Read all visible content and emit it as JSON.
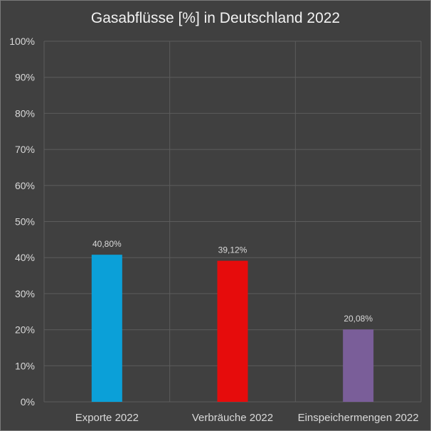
{
  "chart_data": {
    "type": "bar",
    "title": "Gasabflüsse [%] in Deutschland 2022",
    "xlabel": "",
    "ylabel": "",
    "categories": [
      "Exporte 2022",
      "Verbräuche 2022",
      "Einspeichermengen 2022"
    ],
    "values": [
      40.8,
      39.12,
      20.08
    ],
    "data_labels": [
      "40,80%",
      "39,12%",
      "20,08%"
    ],
    "colors": [
      "#0ba0d8",
      "#e60c0c",
      "#7a5e99"
    ],
    "ylim": [
      0,
      100
    ],
    "yticks": [
      0,
      10,
      20,
      30,
      40,
      50,
      60,
      70,
      80,
      90,
      100
    ],
    "ytick_labels": [
      "0%",
      "10%",
      "20%",
      "30%",
      "40%",
      "50%",
      "60%",
      "70%",
      "80%",
      "90%",
      "100%"
    ],
    "grid": true,
    "legend": "none",
    "background": "#404040"
  }
}
